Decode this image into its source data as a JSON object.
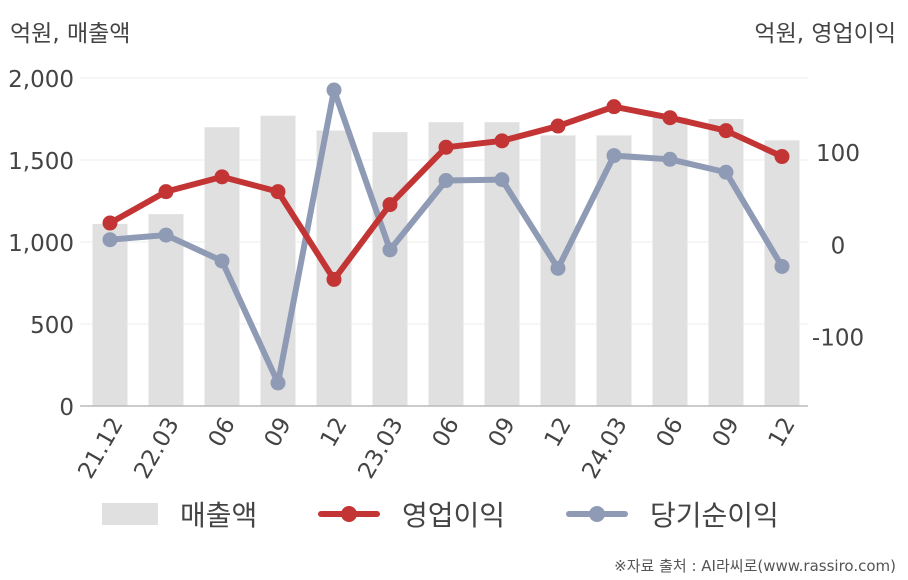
{
  "units": {
    "left": "억원, 매출액",
    "right": "억원, 영업이익"
  },
  "source": "※자료 출처 : AI라씨로(www.rassiro.com)",
  "legend": {
    "sales": "매출액",
    "op": "영업이익",
    "net": "당기순이익"
  },
  "colors": {
    "bar": "#e0e0e0",
    "op": "#c33535",
    "net": "#8f9bb5",
    "axis": "#bbbbbb",
    "grid": "#eeeeee",
    "text": "#444444"
  },
  "chart_data": {
    "type": "bar+line",
    "categories": [
      "21.12",
      "22.03",
      "06",
      "09",
      "12",
      "23.03",
      "06",
      "09",
      "12",
      "24.03",
      "06",
      "09",
      "12"
    ],
    "left_axis": {
      "ticks": [
        "0",
        "500",
        "1,000",
        "1,500",
        "2,000"
      ],
      "ylim": [
        0,
        2000
      ]
    },
    "right_axis": {
      "ticks": [
        "-100",
        "0",
        "100"
      ],
      "ylim": [
        -175,
        180
      ]
    },
    "grid": true,
    "legend_position": "bottom",
    "series": [
      {
        "name": "매출액",
        "type": "bar",
        "axis": "left",
        "values": [
          1110,
          1170,
          1700,
          1770,
          1680,
          1670,
          1730,
          1730,
          1650,
          1650,
          1760,
          1750,
          1620
        ]
      },
      {
        "name": "영업이익",
        "type": "line",
        "axis": "right",
        "values": [
          23,
          57,
          73,
          57,
          -38,
          43,
          105,
          112,
          128,
          149,
          137,
          123,
          95
        ]
      },
      {
        "name": "당기순이익",
        "type": "line",
        "axis": "right",
        "values": [
          5,
          10,
          -18,
          -150,
          167,
          -6,
          69,
          70,
          -26,
          96,
          92,
          78,
          -24
        ]
      }
    ]
  }
}
